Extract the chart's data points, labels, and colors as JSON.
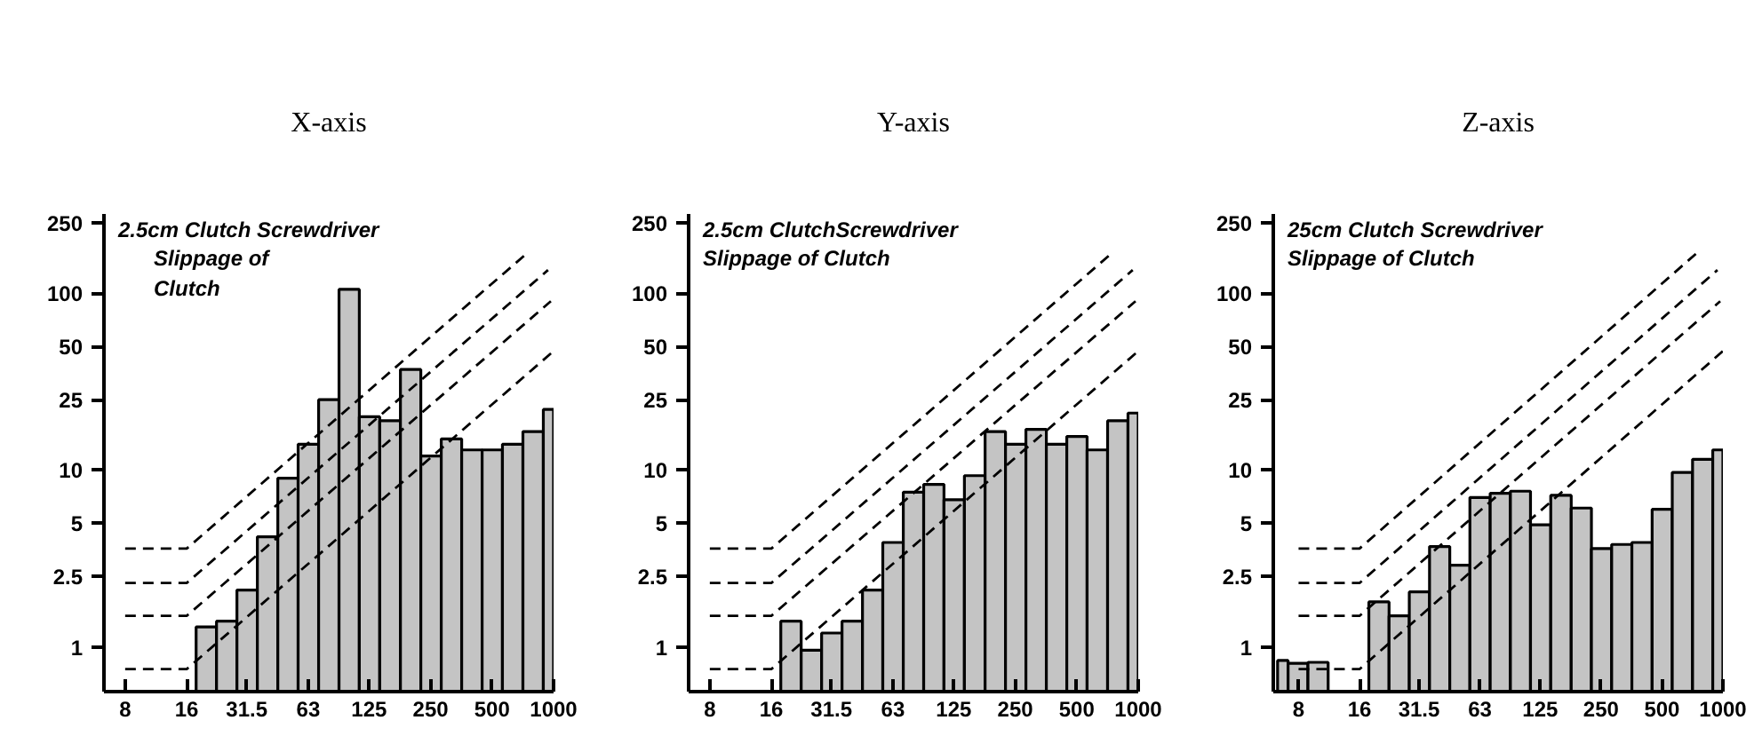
{
  "chart_data": [
    {
      "type": "histogram",
      "title": "X-axis",
      "color": "#c4c4c4",
      "log": "xy",
      "grid": false,
      "xlim": [
        6.3,
        1000
      ],
      "ylim": [
        0.56,
        280
      ],
      "xticks": [
        8,
        16,
        31.5,
        63,
        125,
        250,
        500,
        1000
      ],
      "yticks": [
        1,
        2.5,
        5,
        10,
        25,
        50,
        100,
        250
      ],
      "bins": [
        17.8,
        22.4,
        28.2,
        35.5,
        44.7,
        56.2,
        70.8,
        89.1,
        112,
        141,
        178,
        224,
        282,
        355,
        447,
        562,
        708,
        891,
        1000
      ],
      "values": [
        1.3,
        1.4,
        2.1,
        4.2,
        9,
        14,
        25,
        105,
        20,
        19,
        37,
        12,
        15,
        13,
        13,
        14,
        16.5,
        22
      ],
      "series": [
        {
          "type": "line",
          "line_style": "dashed",
          "color": "#000000",
          "x": [
            8,
            16,
            750
          ],
          "values": [
            3.6,
            3.6,
            170
          ]
        },
        {
          "type": "line",
          "line_style": "dashed",
          "color": "#000000",
          "x": [
            8,
            16,
            940
          ],
          "values": [
            2.3,
            2.3,
            135
          ]
        },
        {
          "type": "line",
          "line_style": "dashed",
          "color": "#000000",
          "x": [
            8,
            16,
            970
          ],
          "values": [
            1.5,
            1.5,
            90
          ]
        },
        {
          "type": "line",
          "line_style": "dashed",
          "color": "#000000",
          "x": [
            8,
            16,
            1000
          ],
          "values": [
            0.75,
            0.75,
            47
          ]
        }
      ],
      "annotations": [
        "2.5cm Clutch Screwdriver",
        "Slippage of\nClutch"
      ]
    },
    {
      "type": "histogram",
      "title": "Y-axis",
      "color": "#c4c4c4",
      "log": "xy",
      "grid": false,
      "xlim": [
        6.3,
        1000
      ],
      "ylim": [
        0.56,
        280
      ],
      "xticks": [
        8,
        16,
        31.5,
        63,
        125,
        250,
        500,
        1000
      ],
      "yticks": [
        1,
        2.5,
        5,
        10,
        25,
        50,
        100,
        250
      ],
      "bins": [
        17.8,
        22.4,
        28.2,
        35.5,
        44.7,
        56.2,
        70.8,
        89.1,
        112,
        141,
        178,
        224,
        282,
        355,
        447,
        562,
        708,
        891,
        1000
      ],
      "values": [
        1.4,
        0.96,
        1.2,
        1.4,
        2.1,
        3.9,
        7.5,
        8.3,
        6.8,
        9.3,
        16.5,
        14,
        17,
        14,
        15.5,
        13,
        19,
        21
      ],
      "series": [
        {
          "type": "line",
          "line_style": "dashed",
          "color": "#000000",
          "x": [
            8,
            16,
            750
          ],
          "values": [
            3.6,
            3.6,
            170
          ]
        },
        {
          "type": "line",
          "line_style": "dashed",
          "color": "#000000",
          "x": [
            8,
            16,
            940
          ],
          "values": [
            2.3,
            2.3,
            135
          ]
        },
        {
          "type": "line",
          "line_style": "dashed",
          "color": "#000000",
          "x": [
            8,
            16,
            970
          ],
          "values": [
            1.5,
            1.5,
            90
          ]
        },
        {
          "type": "line",
          "line_style": "dashed",
          "color": "#000000",
          "x": [
            8,
            16,
            1000
          ],
          "values": [
            0.75,
            0.75,
            47
          ]
        }
      ],
      "annotations": [
        "2.5cm ClutchScrewdriver",
        "Slippage of Clutch"
      ]
    },
    {
      "type": "histogram",
      "title": "Z-axis",
      "color": "#c4c4c4",
      "log": "xy",
      "grid": false,
      "xlim": [
        6,
        1000
      ],
      "ylim": [
        0.56,
        280
      ],
      "xticks": [
        8,
        16,
        31.5,
        63,
        125,
        250,
        500,
        1000
      ],
      "yticks": [
        1,
        2.5,
        5,
        10,
        25,
        50,
        100,
        250
      ],
      "bins": [
        6.3,
        7.1,
        8.9,
        11.2,
        17.8,
        22.4,
        28.2,
        35.5,
        44.7,
        56.2,
        70.8,
        89.1,
        112,
        141,
        178,
        224,
        282,
        355,
        447,
        562,
        708,
        891,
        1000
      ],
      "values": [
        0.84,
        0.81,
        0.82,
        null,
        1.8,
        1.5,
        2.05,
        3.7,
        2.9,
        7,
        7.4,
        7.6,
        4.9,
        7.2,
        6.1,
        3.6,
        3.8,
        3.9,
        6,
        9.7,
        11.5,
        13
      ],
      "series": [
        {
          "type": "line",
          "line_style": "dashed",
          "color": "#000000",
          "x": [
            8,
            16,
            750
          ],
          "values": [
            3.6,
            3.6,
            170
          ]
        },
        {
          "type": "line",
          "line_style": "dashed",
          "color": "#000000",
          "x": [
            8,
            16,
            940
          ],
          "values": [
            2.3,
            2.3,
            135
          ]
        },
        {
          "type": "line",
          "line_style": "dashed",
          "color": "#000000",
          "x": [
            8,
            16,
            970
          ],
          "values": [
            1.5,
            1.5,
            90
          ]
        },
        {
          "type": "line",
          "line_style": "dashed",
          "color": "#000000",
          "x": [
            8,
            16,
            1000
          ],
          "values": [
            0.75,
            0.75,
            47
          ]
        }
      ],
      "annotations": [
        "25cm Clutch Screwdriver",
        "Slippage of Clutch"
      ]
    }
  ]
}
